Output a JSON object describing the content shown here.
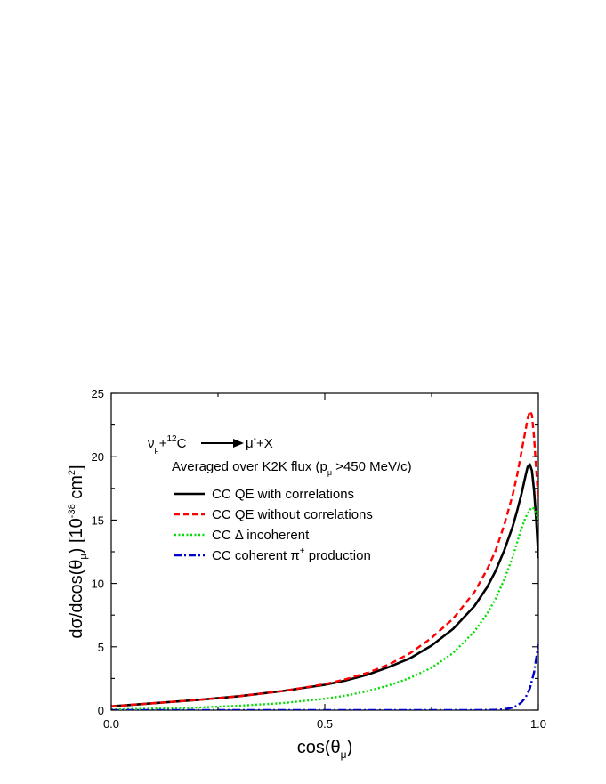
{
  "chart_data": {
    "type": "line",
    "title": "",
    "annotations": {
      "reaction": {
        "nu": "ν",
        "nu_sub": "μ",
        "plus1": "+",
        "c_sup": "12",
        "c": "C",
        "mu": "μ",
        "mu_sup": "-",
        "plusx": "+X"
      },
      "subtitle": {
        "prefix": "Averaged over K2K flux (p",
        "sub": "μ",
        "suffix": " >450 MeV/c)"
      }
    },
    "xlabel": {
      "prefix": "cos(θ",
      "sub": "μ",
      "suffix": ")"
    },
    "ylabel": {
      "prefix": "dσ/dcos(θ",
      "sub": "μ",
      "mid": ") [10",
      "sup1": "-38",
      "mid2": " cm",
      "sup2": "2",
      "suffix": "]"
    },
    "xlim": [
      0.0,
      1.0
    ],
    "ylim": [
      0,
      25
    ],
    "x_ticks": [
      "0.0",
      "0.5",
      "1.0"
    ],
    "y_ticks": [
      "0",
      "5",
      "10",
      "15",
      "20",
      "25"
    ],
    "grid": false,
    "legend_position": "top-left",
    "series": [
      {
        "name": "CC QE with correlations",
        "color": "#000000",
        "style": "solid",
        "x": [
          0.0,
          0.1,
          0.2,
          0.3,
          0.4,
          0.5,
          0.55,
          0.6,
          0.65,
          0.7,
          0.75,
          0.8,
          0.85,
          0.88,
          0.9,
          0.92,
          0.94,
          0.95,
          0.96,
          0.97,
          0.975,
          0.98,
          0.985,
          0.99,
          0.995,
          1.0
        ],
        "y": [
          0.3,
          0.55,
          0.8,
          1.1,
          1.5,
          2.0,
          2.35,
          2.8,
          3.4,
          4.1,
          5.1,
          6.4,
          8.2,
          9.7,
          11.0,
          12.6,
          14.5,
          15.7,
          17.0,
          18.5,
          19.2,
          19.4,
          18.9,
          17.3,
          15.0,
          12.0
        ]
      },
      {
        "name": "CC QE without correlations",
        "color": "#ff0000",
        "style": "dashed",
        "x": [
          0.0,
          0.1,
          0.2,
          0.3,
          0.4,
          0.5,
          0.55,
          0.6,
          0.65,
          0.7,
          0.75,
          0.8,
          0.85,
          0.88,
          0.9,
          0.92,
          0.94,
          0.95,
          0.96,
          0.97,
          0.975,
          0.98,
          0.985,
          0.99,
          0.995,
          1.0
        ],
        "y": [
          0.3,
          0.55,
          0.8,
          1.1,
          1.5,
          2.05,
          2.45,
          2.95,
          3.6,
          4.5,
          5.7,
          7.2,
          9.3,
          11.1,
          12.6,
          14.6,
          17.0,
          18.5,
          20.3,
          22.1,
          23.0,
          23.6,
          23.3,
          21.5,
          19.0,
          16.5
        ]
      },
      {
        "name": "CC Δ incoherent",
        "color": "#00dd00",
        "style": "dotted",
        "x": [
          0.0,
          0.1,
          0.2,
          0.3,
          0.4,
          0.5,
          0.55,
          0.6,
          0.65,
          0.7,
          0.75,
          0.8,
          0.85,
          0.88,
          0.9,
          0.92,
          0.94,
          0.95,
          0.96,
          0.97,
          0.98,
          0.985,
          0.99,
          0.995,
          1.0
        ],
        "y": [
          0.05,
          0.12,
          0.2,
          0.35,
          0.55,
          0.9,
          1.15,
          1.5,
          1.95,
          2.55,
          3.35,
          4.5,
          6.2,
          7.6,
          8.8,
          10.3,
          12.1,
          13.2,
          14.3,
          15.2,
          15.8,
          16.0,
          15.9,
          15.5,
          14.8
        ]
      },
      {
        "name": "CC coherent π+ production",
        "label": {
          "prefix": "CC coherent π",
          "sup": "+",
          "suffix": " production"
        },
        "color": "#0000cc",
        "style": "dashdot",
        "x": [
          0.0,
          0.2,
          0.4,
          0.6,
          0.8,
          0.88,
          0.9,
          0.92,
          0.94,
          0.95,
          0.96,
          0.97,
          0.98,
          0.99,
          1.0
        ],
        "y": [
          0.0,
          0.0,
          0.0,
          0.0,
          0.0,
          0.01,
          0.03,
          0.07,
          0.2,
          0.35,
          0.6,
          1.0,
          1.7,
          3.0,
          5.2
        ]
      }
    ]
  }
}
